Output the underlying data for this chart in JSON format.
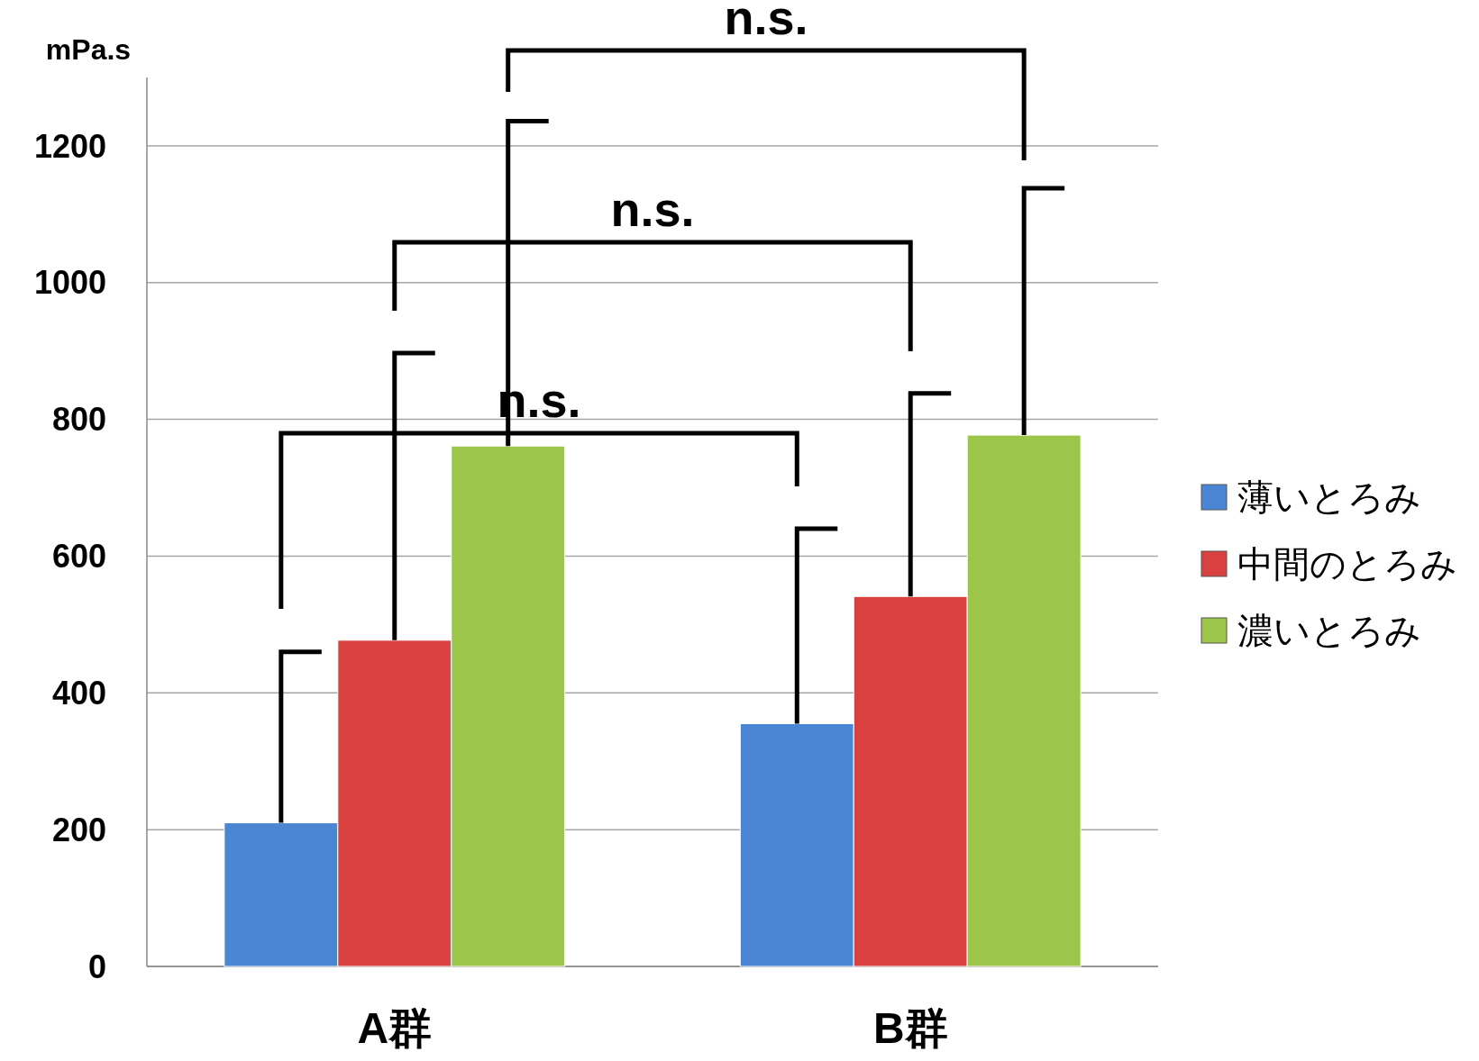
{
  "chart_data": {
    "type": "bar",
    "ylabel": "mPa.s",
    "categories": [
      "A群",
      "B群"
    ],
    "series": [
      {
        "name": "薄いとろみ",
        "color": "#4a86d4",
        "values": [
          210,
          355
        ],
        "errors": [
          [
            210,
            460
          ],
          [
            355,
            640
          ]
        ]
      },
      {
        "name": "中間のとろみ",
        "color": "#d94040",
        "values": [
          477,
          541
        ],
        "errors": [
          [
            477,
            897
          ],
          [
            541,
            838
          ]
        ]
      },
      {
        "name": "濃いとろみ",
        "color": "#9bc64a",
        "values": [
          761,
          777
        ],
        "errors": [
          [
            761,
            1236
          ],
          [
            777,
            1138
          ]
        ]
      }
    ],
    "ylim": [
      0,
      1300
    ],
    "yticks": [
      0,
      200,
      400,
      600,
      800,
      1000,
      1200
    ],
    "grid": "y",
    "legend": "right",
    "annotations": [
      "n.s.",
      "n.s.",
      "n.s."
    ]
  }
}
